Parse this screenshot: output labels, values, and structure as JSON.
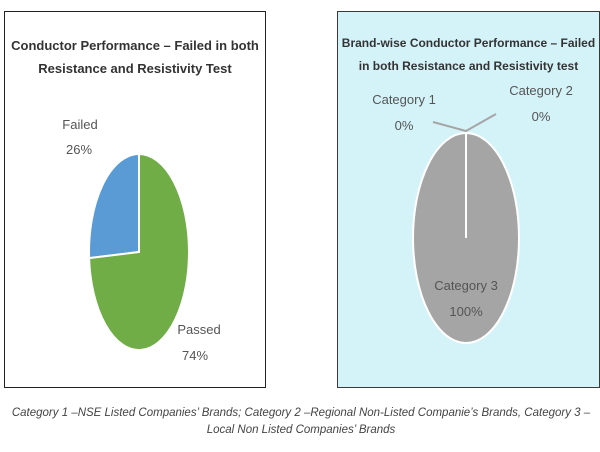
{
  "chart_data": [
    {
      "type": "pie",
      "title_line1": "Conductor Performance – Failed in both",
      "title_line2": "Resistance and Resistivity Test",
      "slices": [
        {
          "name": "Failed",
          "pct_label": "26%",
          "value": 26,
          "color": "#5b9bd5"
        },
        {
          "name": "Passed",
          "pct_label": "74%",
          "value": 74,
          "color": "#70ad47"
        }
      ],
      "background": "#ffffff"
    },
    {
      "type": "pie",
      "title_line1": "Brand-wise Conductor Performance – Failed",
      "title_line2": "in both Resistance and Resistivity test",
      "slices": [
        {
          "name": "Category 1",
          "pct_label": "0%",
          "value": 0,
          "color": "#a5a5a5"
        },
        {
          "name": "Category 2",
          "pct_label": "0%",
          "value": 0,
          "color": "#a5a5a5"
        },
        {
          "name": "Category 3",
          "pct_label": "100%",
          "value": 100,
          "color": "#a5a5a5"
        }
      ],
      "background": "#d4f3f9"
    }
  ],
  "caption": "Category 1 –NSE Listed Companies’ Brands; Category 2 –Regional Non-Listed Companie’s Brands, Category 3 –Local Non Listed Companies’ Brands",
  "colors": {
    "border": "#222222",
    "text": "#555555"
  }
}
